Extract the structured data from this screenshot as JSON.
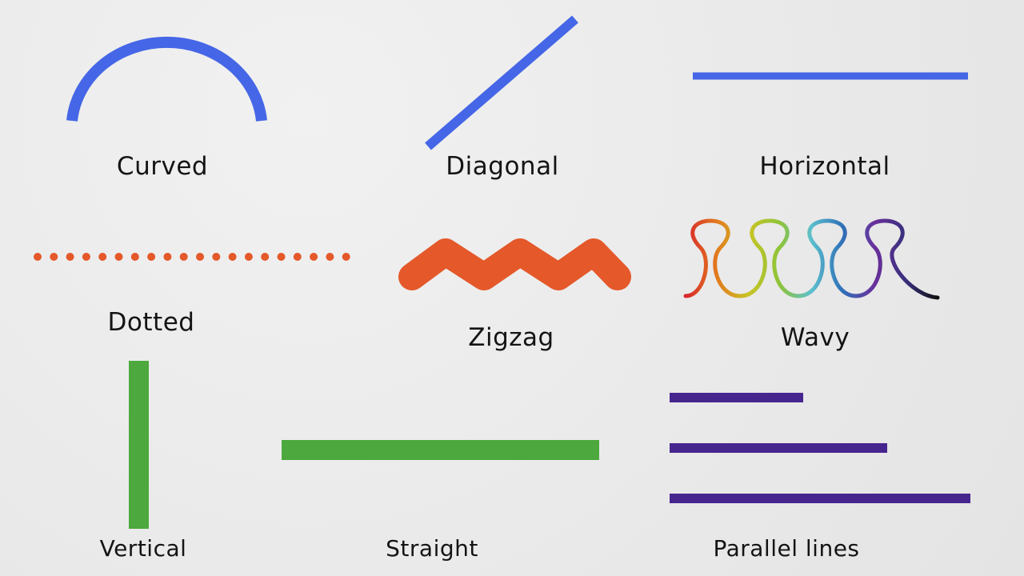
{
  "labels": {
    "curved": "Curved",
    "diagonal": "Diagonal",
    "horizontal": "Horizontal",
    "dotted": "Dotted",
    "zigzag": "Zigzag",
    "wavy": "Wavy",
    "vertical": "Vertical",
    "straight": "Straight",
    "parallel": "Parallel lines"
  },
  "colors": {
    "blue": "#4566e6",
    "orange": "#e4582a",
    "green": "#4da83e",
    "purple": "#47258f",
    "wavy_gradient": [
      "#d9262b",
      "#e27b1e",
      "#c9c426",
      "#8dc43a",
      "#5bbfce",
      "#2f6fb7",
      "#6a2f9c",
      "#37307c",
      "#111111"
    ]
  }
}
